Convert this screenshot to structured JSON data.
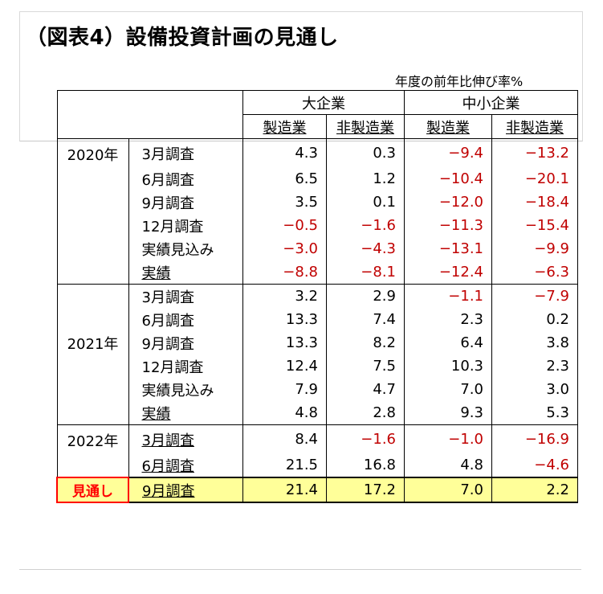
{
  "title": "（図表4）設備投資計画の見通し",
  "unit_label": "年度の前年比伸び率%",
  "headers": {
    "large": "大企業",
    "small": "中小企業",
    "mfg": "製造業",
    "nonmfg": "非製造業"
  },
  "years": [
    "2020年",
    "2021年",
    "2022年"
  ],
  "outlook_label": "見通し",
  "rows": [
    {
      "survey": "3月調査",
      "v": [
        "4.3",
        "0.3",
        "−9.4",
        "−13.2"
      ]
    },
    {
      "survey": "6月調査",
      "v": [
        "6.5",
        "1.2",
        "−10.4",
        "−20.1"
      ]
    },
    {
      "survey": "9月調査",
      "v": [
        "3.5",
        "0.1",
        "−12.0",
        "−18.4"
      ]
    },
    {
      "survey": "12月調査",
      "v": [
        "−0.5",
        "−1.6",
        "−11.3",
        "−15.4"
      ]
    },
    {
      "survey": "実績見込み",
      "v": [
        "−3.0",
        "−4.3",
        "−13.1",
        "−9.9"
      ]
    },
    {
      "survey": "実績",
      "v": [
        "−8.8",
        "−8.1",
        "−12.4",
        "−6.3"
      ]
    },
    {
      "survey": "3月調査",
      "v": [
        "3.2",
        "2.9",
        "−1.1",
        "−7.9"
      ]
    },
    {
      "survey": "6月調査",
      "v": [
        "13.3",
        "7.4",
        "2.3",
        "0.2"
      ]
    },
    {
      "survey": "9月調査",
      "v": [
        "13.3",
        "8.2",
        "6.4",
        "3.8"
      ]
    },
    {
      "survey": "12月調査",
      "v": [
        "12.4",
        "7.5",
        "10.3",
        "2.3"
      ]
    },
    {
      "survey": "実績見込み",
      "v": [
        "7.9",
        "4.7",
        "7.0",
        "3.0"
      ]
    },
    {
      "survey": "実績",
      "v": [
        "4.8",
        "2.8",
        "9.3",
        "5.3"
      ]
    },
    {
      "survey": "3月調査",
      "v": [
        "8.4",
        "−1.6",
        "−1.0",
        "−16.9"
      ]
    },
    {
      "survey": "6月調査",
      "v": [
        "21.5",
        "16.8",
        "4.8",
        "−4.6"
      ]
    },
    {
      "survey": "9月調査",
      "v": [
        "21.4",
        "17.2",
        "7.0",
        "2.2"
      ]
    }
  ],
  "colors": {
    "negative": "#c00000",
    "outlook_bg": "#ffff99",
    "outlook_label": "#ff0000"
  }
}
